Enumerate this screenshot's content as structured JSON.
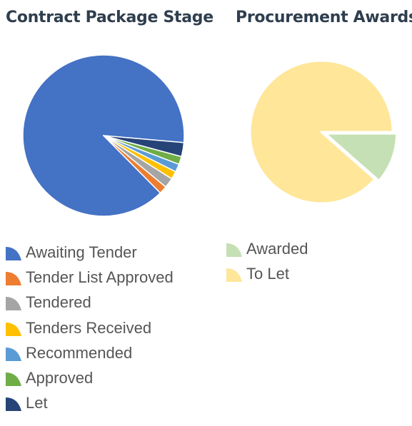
{
  "chart_data": [
    {
      "type": "pie",
      "title": "Contract Package Stage",
      "categories": [
        "Awaiting Tender",
        "Tender List Approved",
        "Tendered",
        "Tenders Received",
        "Recommended",
        "Approved",
        "Let"
      ],
      "values": [
        88.8,
        1.6,
        2.0,
        1.6,
        1.6,
        1.6,
        2.8
      ],
      "colors": [
        "#4472c4",
        "#ed7d31",
        "#a5a5a5",
        "#ffc000",
        "#5b9bd5",
        "#70ad47",
        "#264478"
      ],
      "legend": "bottom"
    },
    {
      "type": "pie",
      "title": "Procurement Awards",
      "categories": [
        "Awarded",
        "To Let"
      ],
      "values": [
        11.5,
        88.5
      ],
      "colors": [
        "#c5e0b4",
        "#ffe699"
      ],
      "legend": "bottom",
      "exploded": "Awarded"
    }
  ]
}
